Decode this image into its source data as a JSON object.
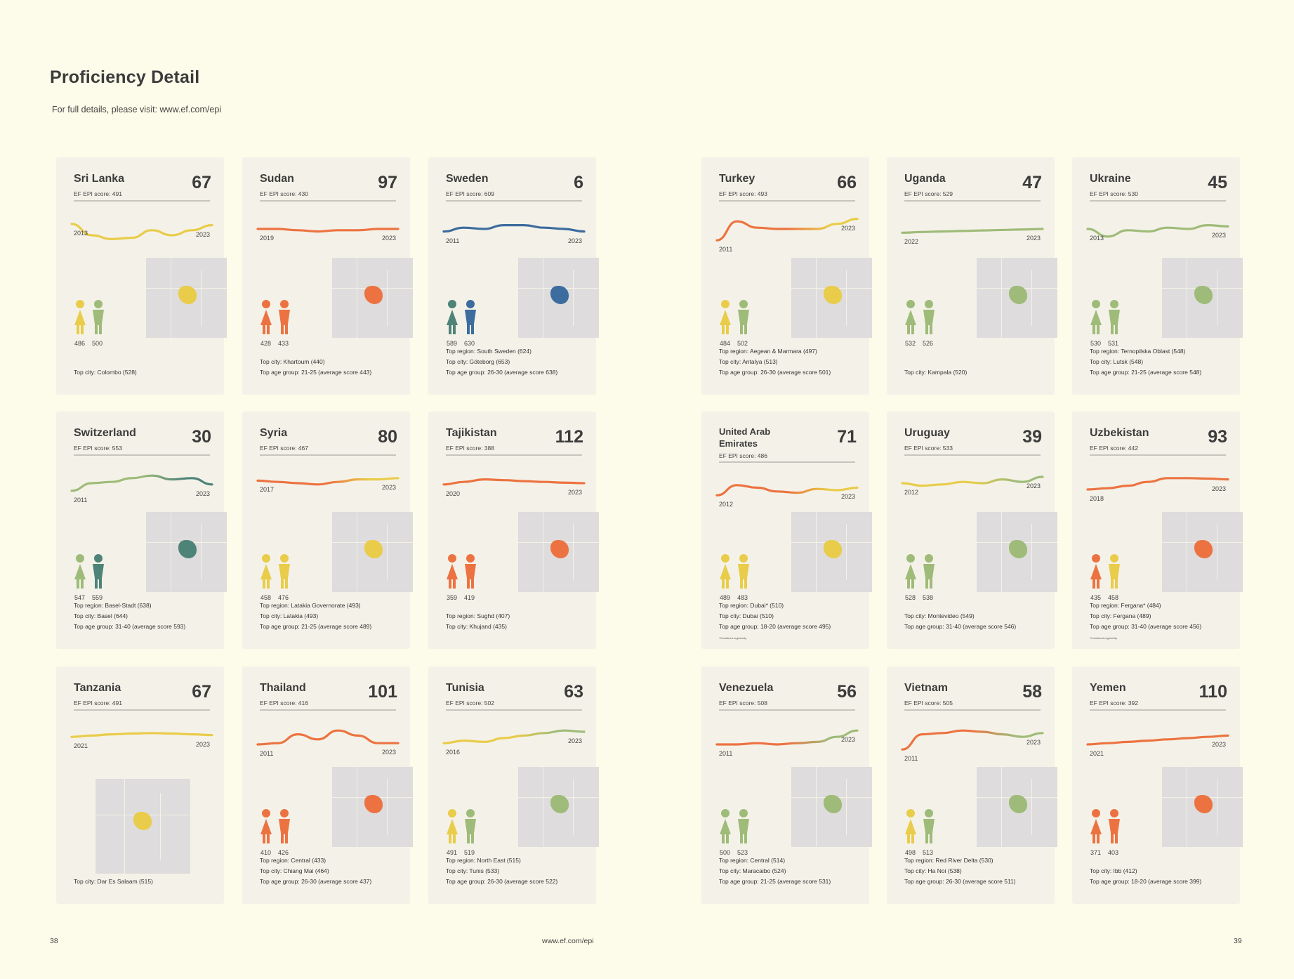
{
  "page": {
    "title": "Proficiency Detail",
    "subtitle": "For full details, please visit: www.ef.com/epi",
    "page_left": "38",
    "footer_url": "www.ef.com/epi",
    "page_right": "39"
  },
  "colors": {
    "yellow": "#e9cc4a",
    "orange": "#ec7341",
    "green": "#9fbb79",
    "teal": "#4e8378",
    "blue": "#3d6c9e",
    "map": "#dedcdc"
  },
  "countries": [
    {
      "name": "Sri Lanka",
      "rank": "67",
      "score": "EF EPI score: 491",
      "start_year": "2013",
      "end_year": "2023",
      "trend": [
        0.3,
        0.75,
        0.9,
        0.85,
        0.55,
        0.75,
        0.55,
        0.35
      ],
      "gradient": [
        "#e9cc4a",
        "#e9cc4a"
      ],
      "female_color": "#e9cc4a",
      "male_color": "#9fbb79",
      "female_score": "486",
      "male_score": "500",
      "highlight_color": "#e9cc4a",
      "facts": [
        "Top city: Colombo (528)"
      ],
      "footnote": ""
    },
    {
      "name": "Sudan",
      "rank": "97",
      "score": "EF EPI score: 430",
      "start_year": "2019",
      "end_year": "2023",
      "trend": [
        0.5,
        0.5,
        0.55,
        0.6,
        0.55,
        0.55,
        0.5,
        0.5
      ],
      "gradient": [
        "#ec7341",
        "#ec7341"
      ],
      "female_color": "#ec7341",
      "male_color": "#ec7341",
      "female_score": "428",
      "male_score": "433",
      "highlight_color": "#ec7341",
      "facts": [
        "Top city: Khartoum (440)",
        "Top age group: 21-25 (average score 443)"
      ],
      "footnote": ""
    },
    {
      "name": "Sweden",
      "rank": "6",
      "score": "EF EPI score: 609",
      "start_year": "2011",
      "end_year": "2023",
      "trend": [
        0.6,
        0.45,
        0.5,
        0.35,
        0.35,
        0.45,
        0.5,
        0.6
      ],
      "gradient": [
        "#3d6c9e",
        "#3d6c9e"
      ],
      "female_color": "#4e8378",
      "male_color": "#3d6c9e",
      "female_score": "589",
      "male_score": "630",
      "highlight_color": "#3d6c9e",
      "facts": [
        "Top region: South Sweden (624)",
        "Top city: Göteborg (653)",
        "Top age group: 26-30 (average score 638)"
      ],
      "footnote": ""
    },
    {
      "name": "Turkey",
      "rank": "66",
      "score": "EF EPI score: 493",
      "start_year": "2011",
      "end_year": "2023",
      "trend": [
        0.95,
        0.2,
        0.45,
        0.5,
        0.5,
        0.5,
        0.3,
        0.1
      ],
      "gradient": [
        "#ec7341",
        "#e9cc4a"
      ],
      "female_color": "#e9cc4a",
      "male_color": "#9fbb79",
      "female_score": "484",
      "male_score": "502",
      "highlight_color": "#e9cc4a",
      "facts": [
        "Top region: Aegean & Marmara (497)",
        "Top city: Antalya (513)",
        "Top age group: 26-30 (average score 501)"
      ],
      "footnote": ""
    },
    {
      "name": "Uganda",
      "rank": "47",
      "score": "EF EPI score: 529",
      "start_year": "2022",
      "end_year": "2023",
      "trend": [
        0.65,
        0.62,
        0.6,
        0.58,
        0.56,
        0.54,
        0.52,
        0.5
      ],
      "gradient": [
        "#9fbb79",
        "#9fbb79"
      ],
      "female_color": "#9fbb79",
      "male_color": "#9fbb79",
      "female_score": "532",
      "male_score": "526",
      "highlight_color": "#9fbb79",
      "facts": [
        "Top city: Kampala (520)"
      ],
      "footnote": ""
    },
    {
      "name": "Ukraine",
      "rank": "45",
      "score": "EF EPI score: 530",
      "start_year": "2013",
      "end_year": "2023",
      "trend": [
        0.5,
        0.8,
        0.55,
        0.6,
        0.45,
        0.5,
        0.35,
        0.4
      ],
      "gradient": [
        "#9fbb79",
        "#9fbb79"
      ],
      "female_color": "#9fbb79",
      "male_color": "#9fbb79",
      "female_score": "530",
      "male_score": "531",
      "highlight_color": "#9fbb79",
      "facts": [
        "Top region: Ternopilska Oblast (548)",
        "Top city: Lutsk (548)",
        "Top age group: 21-25 (average score 548)"
      ],
      "footnote": ""
    },
    {
      "name": "Switzerland",
      "rank": "30",
      "score": "EF EPI score: 553",
      "start_year": "2011",
      "end_year": "2023",
      "trend": [
        0.8,
        0.5,
        0.45,
        0.3,
        0.2,
        0.35,
        0.3,
        0.55
      ],
      "gradient": [
        "#9fbb79",
        "#4e8378"
      ],
      "female_color": "#9fbb79",
      "male_color": "#4e8378",
      "female_score": "547",
      "male_score": "559",
      "highlight_color": "#4e8378",
      "facts": [
        "Top region: Basel-Stadt (638)",
        "Top city: Basel (644)",
        "Top age group: 31-40 (average score 593)"
      ],
      "footnote": ""
    },
    {
      "name": "Syria",
      "rank": "80",
      "score": "EF EPI score: 467",
      "start_year": "2017",
      "end_year": "2023",
      "trend": [
        0.4,
        0.45,
        0.5,
        0.55,
        0.45,
        0.35,
        0.35,
        0.3
      ],
      "gradient": [
        "#ec7341",
        "#e9cc4a"
      ],
      "female_color": "#e9cc4a",
      "male_color": "#e9cc4a",
      "female_score": "458",
      "male_score": "476",
      "highlight_color": "#e9cc4a",
      "facts": [
        "Top region: Latakia Governorate (493)",
        "Top city: Latakia (493)",
        "Top age group: 21-25 (average score 489)"
      ],
      "footnote": ""
    },
    {
      "name": "Tajikistan",
      "rank": "112",
      "score": "EF EPI score: 388",
      "start_year": "2020",
      "end_year": "2023",
      "trend": [
        0.55,
        0.45,
        0.35,
        0.38,
        0.42,
        0.45,
        0.48,
        0.5
      ],
      "gradient": [
        "#ec7341",
        "#ec7341"
      ],
      "female_color": "#ec7341",
      "male_color": "#ec7341",
      "female_score": "359",
      "male_score": "419",
      "highlight_color": "#ec7341",
      "facts": [
        "Top region: Sughd (407)",
        "Top city: Khujand (435)"
      ],
      "footnote": ""
    },
    {
      "name": "United Arab Emirates",
      "rank": "71",
      "score": "EF EPI score: 486",
      "start_year": "2012",
      "end_year": "2023",
      "trend": [
        0.7,
        0.3,
        0.4,
        0.55,
        0.6,
        0.45,
        0.5,
        0.4
      ],
      "gradient": [
        "#ec7341",
        "#e9cc4a"
      ],
      "female_color": "#e9cc4a",
      "male_color": "#e9cc4a",
      "female_score": "489",
      "male_score": "483",
      "highlight_color": "#e9cc4a",
      "facts": [
        "Top region: Dubai* (510)",
        "Top city: Dubai (510)",
        "Top age group: 18-20 (average score 495)"
      ],
      "footnote": "*Combined region/city"
    },
    {
      "name": "Uruguay",
      "rank": "39",
      "score": "EF EPI score: 533",
      "start_year": "2012",
      "end_year": "2023",
      "trend": [
        0.5,
        0.6,
        0.55,
        0.45,
        0.5,
        0.35,
        0.45,
        0.25
      ],
      "gradient": [
        "#e9cc4a",
        "#9fbb79"
      ],
      "female_color": "#9fbb79",
      "male_color": "#9fbb79",
      "female_score": "528",
      "male_score": "538",
      "highlight_color": "#9fbb79",
      "facts": [
        "Top city: Montevideo (549)",
        "Top age group: 31-40 (average score 546)"
      ],
      "footnote": ""
    },
    {
      "name": "Uzbekistan",
      "rank": "93",
      "score": "EF EPI score: 442",
      "start_year": "2018",
      "end_year": "2023",
      "trend": [
        0.75,
        0.7,
        0.6,
        0.45,
        0.3,
        0.3,
        0.32,
        0.35
      ],
      "gradient": [
        "#ec7341",
        "#ec7341"
      ],
      "female_color": "#ec7341",
      "male_color": "#e9cc4a",
      "female_score": "435",
      "male_score": "458",
      "highlight_color": "#ec7341",
      "facts": [
        "Top region: Fergana* (484)",
        "Top city: Fergana (489)",
        "Top age group: 31-40 (average score 456)"
      ],
      "footnote": "*Combined region/city"
    },
    {
      "name": "Tanzania",
      "rank": "67",
      "score": "EF EPI score: 491",
      "start_year": "2021",
      "end_year": "2023",
      "trend": [
        0.45,
        0.4,
        0.35,
        0.32,
        0.3,
        0.32,
        0.35,
        0.38
      ],
      "gradient": [
        "#e9cc4a",
        "#e9cc4a"
      ],
      "female_color": "#e9cc4a",
      "male_color": "#e9cc4a",
      "female_score": "",
      "male_score": "",
      "highlight_color": "#e9cc4a",
      "facts": [
        "Top city: Dar Es Salaam (515)"
      ],
      "footnote": ""
    },
    {
      "name": "Thailand",
      "rank": "101",
      "score": "EF EPI score: 416",
      "start_year": "2011",
      "end_year": "2023",
      "trend": [
        0.75,
        0.7,
        0.35,
        0.55,
        0.2,
        0.4,
        0.7,
        0.7
      ],
      "gradient": [
        "#ec7341",
        "#ec7341"
      ],
      "female_color": "#ec7341",
      "male_color": "#ec7341",
      "female_score": "410",
      "male_score": "426",
      "highlight_color": "#ec7341",
      "facts": [
        "Top region: Central (433)",
        "Top city: Chiang Mai (464)",
        "Top age group: 26-30 (average score 437)"
      ],
      "footnote": ""
    },
    {
      "name": "Tunisia",
      "rank": "63",
      "score": "EF EPI score: 502",
      "start_year": "2016",
      "end_year": "2023",
      "trend": [
        0.7,
        0.6,
        0.65,
        0.5,
        0.4,
        0.3,
        0.2,
        0.25
      ],
      "gradient": [
        "#e9cc4a",
        "#9fbb79"
      ],
      "female_color": "#e9cc4a",
      "male_color": "#9fbb79",
      "female_score": "491",
      "male_score": "519",
      "highlight_color": "#9fbb79",
      "facts": [
        "Top region: North East (515)",
        "Top city: Tunis (533)",
        "Top age group: 26-30 (average score 522)"
      ],
      "footnote": ""
    },
    {
      "name": "Venezuela",
      "rank": "56",
      "score": "EF EPI score: 508",
      "start_year": "2011",
      "end_year": "2023",
      "trend": [
        0.75,
        0.75,
        0.7,
        0.75,
        0.7,
        0.65,
        0.45,
        0.2
      ],
      "gradient": [
        "#ec7341",
        "#9fbb79"
      ],
      "female_color": "#9fbb79",
      "male_color": "#9fbb79",
      "female_score": "500",
      "male_score": "523",
      "highlight_color": "#9fbb79",
      "facts": [
        "Top region: Central (514)",
        "Top city: Maracaibo (524)",
        "Top age group: 21-25 (average score 531)"
      ],
      "footnote": ""
    },
    {
      "name": "Vietnam",
      "rank": "58",
      "score": "EF EPI score: 505",
      "start_year": "2011",
      "end_year": "2023",
      "trend": [
        0.95,
        0.35,
        0.3,
        0.2,
        0.25,
        0.35,
        0.45,
        0.3
      ],
      "gradient": [
        "#ec7341",
        "#9fbb79"
      ],
      "female_color": "#e9cc4a",
      "male_color": "#9fbb79",
      "female_score": "498",
      "male_score": "513",
      "highlight_color": "#9fbb79",
      "facts": [
        "Top region: Red River Delta (530)",
        "Top city: Ha Noi (538)",
        "Top age group: 26-30 (average score 511)"
      ],
      "footnote": ""
    },
    {
      "name": "Yemen",
      "rank": "110",
      "score": "EF EPI score: 392",
      "start_year": "2021",
      "end_year": "2023",
      "trend": [
        0.75,
        0.7,
        0.65,
        0.6,
        0.55,
        0.5,
        0.45,
        0.4
      ],
      "gradient": [
        "#ec7341",
        "#ec7341"
      ],
      "female_color": "#ec7341",
      "male_color": "#ec7341",
      "female_score": "371",
      "male_score": "403",
      "highlight_color": "#ec7341",
      "facts": [
        "Top city: Ibb (412)",
        "Top age group: 18-20 (average score 399)"
      ],
      "footnote": ""
    }
  ]
}
